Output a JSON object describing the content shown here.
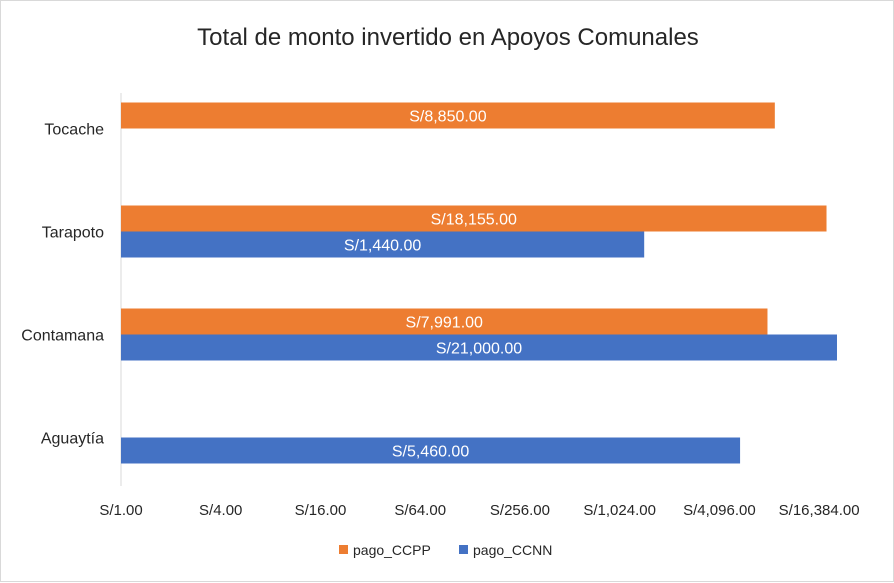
{
  "chart_data": {
    "type": "bar",
    "orientation": "horizontal",
    "title": "Total de monto invertido en Apoyos Comunales",
    "categories": [
      "Tocache",
      "Tarapoto",
      "Contamana",
      "Aguaytía"
    ],
    "series": [
      {
        "name": "pago_CCPP",
        "color": "#ED7D31",
        "values": [
          8850,
          18155,
          7991,
          null
        ],
        "labels": [
          "S/8,850.00",
          "S/18,155.00",
          "S/7,991.00",
          ""
        ]
      },
      {
        "name": "pago_CCNN",
        "color": "#4472C4",
        "values": [
          null,
          1440,
          21000,
          5460
        ],
        "labels": [
          "",
          "S/1,440.00",
          "S/21,000.00",
          "S/5,460.00"
        ]
      }
    ],
    "xaxis": {
      "scale": "log2",
      "range": [
        1,
        32768
      ],
      "ticks": [
        1,
        4,
        16,
        64,
        256,
        1024,
        4096,
        16384
      ],
      "tick_labels": [
        "S/1.00",
        "S/4.00",
        "S/16.00",
        "S/64.00",
        "S/256.00",
        "S/1,024.00",
        "S/4,096.00",
        "S/16,384.00"
      ]
    },
    "grid": false,
    "legend": {
      "position": "bottom"
    }
  }
}
